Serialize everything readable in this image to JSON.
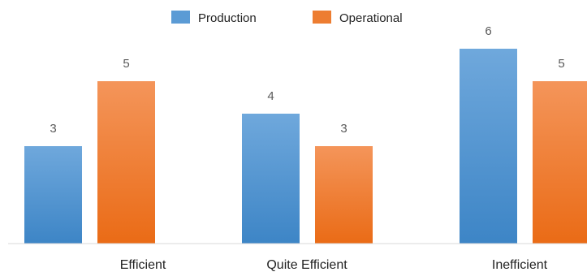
{
  "chart_data": {
    "type": "bar",
    "categories": [
      "Efficient",
      "Quite Efficient",
      "Inefficient"
    ],
    "series": [
      {
        "name": "Production",
        "values": [
          3,
          4,
          6
        ],
        "color_top": "#6fa8dc",
        "color_bottom": "#3d85c6"
      },
      {
        "name": "Operational",
        "values": [
          5,
          3,
          5
        ],
        "color_top": "#f4955a",
        "color_bottom": "#ea6b16"
      }
    ],
    "title": "",
    "xlabel": "",
    "ylabel": "",
    "ylim": [
      0,
      6
    ],
    "grid": false,
    "legend": "top-center"
  }
}
